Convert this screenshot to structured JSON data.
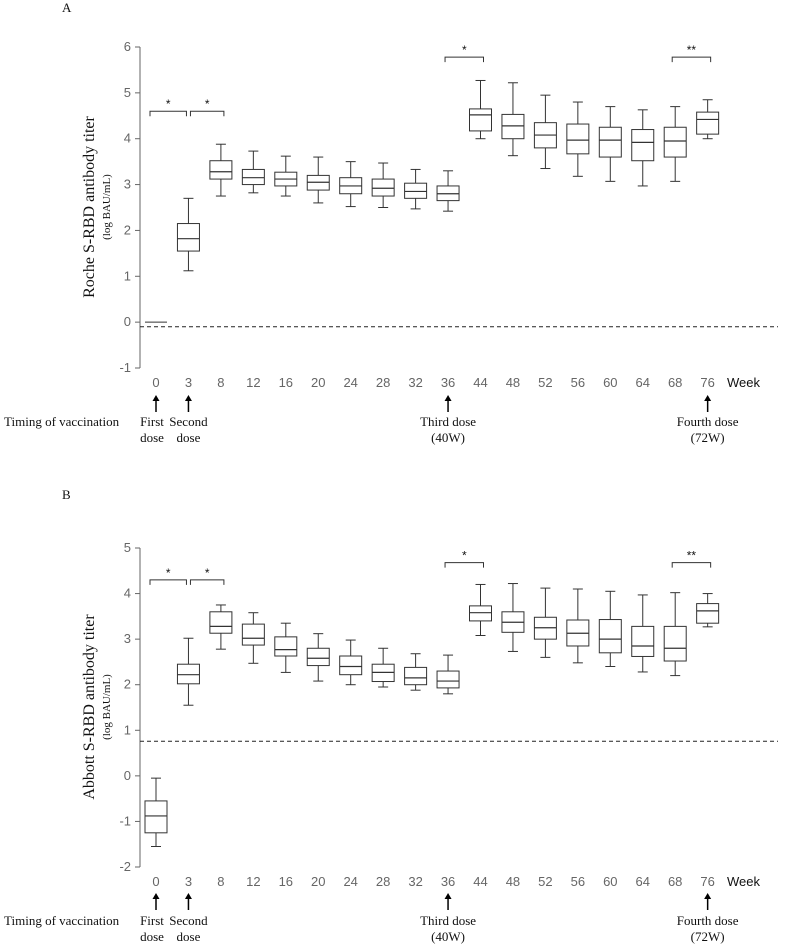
{
  "figure": {
    "week_unit_label": "Week",
    "timing_label": "Timing of vaccination",
    "dose_labels": [
      [
        "First",
        "dose"
      ],
      [
        "Second",
        "dose"
      ],
      [
        "Third dose",
        "(40W)"
      ],
      [
        "Fourth dose",
        "(72W)"
      ]
    ],
    "dose_at_categories": [
      "0",
      "3",
      "36",
      "76"
    ],
    "colors": {
      "line": "#333333",
      "text": "#111111",
      "tick": "#666666"
    }
  },
  "chart_data": [
    {
      "type": "boxplot",
      "panel_label": "A",
      "ylabel": "Roche S-RBD antibody titer",
      "ylabel_unit": "(log BAU/mL)",
      "xlabel": "Week",
      "ylim": [
        -1,
        6
      ],
      "yticks": [
        -1,
        0,
        1,
        2,
        3,
        4,
        5,
        6
      ],
      "reference_line": -0.1,
      "categories": [
        "0",
        "3",
        "8",
        "12",
        "16",
        "20",
        "24",
        "28",
        "32",
        "36",
        "44",
        "48",
        "52",
        "56",
        "60",
        "64",
        "68",
        "76"
      ],
      "boxes": [
        {
          "min": 0.0,
          "q1": 0.0,
          "median": 0.0,
          "q3": 0.0,
          "max": 0.0
        },
        {
          "min": 1.12,
          "q1": 1.55,
          "median": 1.82,
          "q3": 2.15,
          "max": 2.7
        },
        {
          "min": 2.75,
          "q1": 3.12,
          "median": 3.28,
          "q3": 3.52,
          "max": 3.88
        },
        {
          "min": 2.82,
          "q1": 3.0,
          "median": 3.15,
          "q3": 3.33,
          "max": 3.73
        },
        {
          "min": 2.75,
          "q1": 2.97,
          "median": 3.12,
          "q3": 3.27,
          "max": 3.62
        },
        {
          "min": 2.6,
          "q1": 2.88,
          "median": 3.05,
          "q3": 3.2,
          "max": 3.6
        },
        {
          "min": 2.52,
          "q1": 2.8,
          "median": 2.97,
          "q3": 3.15,
          "max": 3.5
        },
        {
          "min": 2.5,
          "q1": 2.75,
          "median": 2.92,
          "q3": 3.12,
          "max": 3.47
        },
        {
          "min": 2.47,
          "q1": 2.7,
          "median": 2.85,
          "q3": 3.03,
          "max": 3.33
        },
        {
          "min": 2.42,
          "q1": 2.65,
          "median": 2.8,
          "q3": 2.97,
          "max": 3.3
        },
        {
          "min": 4.0,
          "q1": 4.17,
          "median": 4.52,
          "q3": 4.65,
          "max": 5.27
        },
        {
          "min": 3.63,
          "q1": 4.0,
          "median": 4.28,
          "q3": 4.53,
          "max": 5.22
        },
        {
          "min": 3.35,
          "q1": 3.8,
          "median": 4.08,
          "q3": 4.35,
          "max": 4.95
        },
        {
          "min": 3.18,
          "q1": 3.67,
          "median": 3.97,
          "q3": 4.32,
          "max": 4.8
        },
        {
          "min": 3.07,
          "q1": 3.6,
          "median": 3.97,
          "q3": 4.25,
          "max": 4.7
        },
        {
          "min": 2.97,
          "q1": 3.52,
          "median": 3.92,
          "q3": 4.2,
          "max": 4.63
        },
        {
          "min": 3.07,
          "q1": 3.6,
          "median": 3.95,
          "q3": 4.25,
          "max": 4.7
        },
        {
          "min": 4.0,
          "q1": 4.1,
          "median": 4.42,
          "q3": 4.58,
          "max": 4.85
        }
      ],
      "significance": [
        {
          "from": "0",
          "to": "3",
          "label": "*",
          "y": 4.6
        },
        {
          "from": "3",
          "to": "8",
          "label": "*",
          "y": 4.6
        },
        {
          "from": "36",
          "to": "44",
          "label": "*",
          "y": 5.78
        },
        {
          "from": "68",
          "to": "76",
          "label": "**",
          "y": 5.78
        }
      ]
    },
    {
      "type": "boxplot",
      "panel_label": "B",
      "ylabel": "Abbott S-RBD antibody titer",
      "ylabel_unit": "(log BAU/mL)",
      "xlabel": "Week",
      "ylim": [
        -2,
        5
      ],
      "yticks": [
        -2,
        -1,
        0,
        1,
        2,
        3,
        4,
        5
      ],
      "reference_line": 0.76,
      "categories": [
        "0",
        "3",
        "8",
        "12",
        "16",
        "20",
        "24",
        "28",
        "32",
        "36",
        "44",
        "48",
        "52",
        "56",
        "60",
        "64",
        "68",
        "76"
      ],
      "boxes": [
        {
          "min": -1.55,
          "q1": -1.25,
          "median": -0.88,
          "q3": -0.55,
          "max": -0.05
        },
        {
          "min": 1.55,
          "q1": 2.02,
          "median": 2.22,
          "q3": 2.45,
          "max": 3.02
        },
        {
          "min": 2.78,
          "q1": 3.13,
          "median": 3.28,
          "q3": 3.6,
          "max": 3.75
        },
        {
          "min": 2.47,
          "q1": 2.87,
          "median": 3.02,
          "q3": 3.33,
          "max": 3.58
        },
        {
          "min": 2.27,
          "q1": 2.63,
          "median": 2.77,
          "q3": 3.05,
          "max": 3.35
        },
        {
          "min": 2.08,
          "q1": 2.42,
          "median": 2.58,
          "q3": 2.8,
          "max": 3.12
        },
        {
          "min": 2.0,
          "q1": 2.22,
          "median": 2.4,
          "q3": 2.63,
          "max": 2.98
        },
        {
          "min": 1.95,
          "q1": 2.07,
          "median": 2.27,
          "q3": 2.45,
          "max": 2.8
        },
        {
          "min": 1.88,
          "q1": 2.0,
          "median": 2.15,
          "q3": 2.38,
          "max": 2.68
        },
        {
          "min": 1.8,
          "q1": 1.93,
          "median": 2.08,
          "q3": 2.3,
          "max": 2.65
        },
        {
          "min": 3.08,
          "q1": 3.4,
          "median": 3.58,
          "q3": 3.73,
          "max": 4.2
        },
        {
          "min": 2.73,
          "q1": 3.15,
          "median": 3.37,
          "q3": 3.6,
          "max": 4.22
        },
        {
          "min": 2.6,
          "q1": 3.0,
          "median": 3.25,
          "q3": 3.48,
          "max": 4.12
        },
        {
          "min": 2.48,
          "q1": 2.85,
          "median": 3.13,
          "q3": 3.42,
          "max": 4.1
        },
        {
          "min": 2.4,
          "q1": 2.7,
          "median": 3.0,
          "q3": 3.43,
          "max": 4.05
        },
        {
          "min": 2.28,
          "q1": 2.62,
          "median": 2.85,
          "q3": 3.28,
          "max": 3.97
        },
        {
          "min": 2.2,
          "q1": 2.52,
          "median": 2.8,
          "q3": 3.28,
          "max": 4.02
        },
        {
          "min": 3.27,
          "q1": 3.35,
          "median": 3.62,
          "q3": 3.78,
          "max": 4.0
        }
      ],
      "significance": [
        {
          "from": "0",
          "to": "3",
          "label": "*",
          "y": 4.3
        },
        {
          "from": "3",
          "to": "8",
          "label": "*",
          "y": 4.3
        },
        {
          "from": "36",
          "to": "44",
          "label": "*",
          "y": 4.68
        },
        {
          "from": "68",
          "to": "76",
          "label": "**",
          "y": 4.68
        }
      ]
    }
  ]
}
